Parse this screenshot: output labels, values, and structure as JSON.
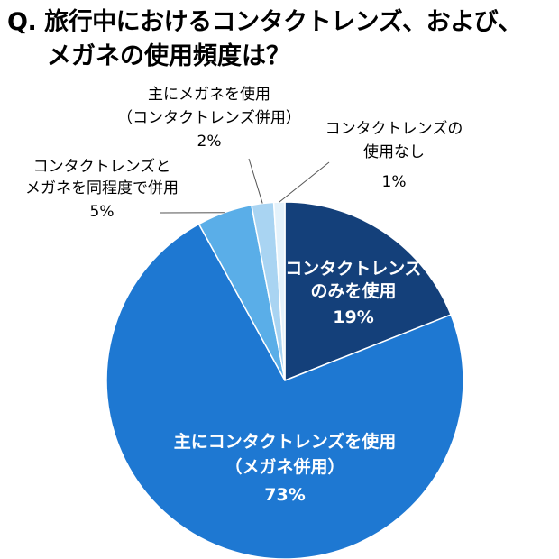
{
  "title": {
    "line1": "Q. 旅行中におけるコンタクトレンズ、および、",
    "line2": "メガネの使用頻度は？"
  },
  "colors": {
    "slice_contact_only": "#14407a",
    "slice_mainly_contact": "#1e78d2",
    "slice_both": "#5aaee8",
    "slice_mainly_glasses": "#a9d4f2",
    "slice_no_contact": "#e4f2fb",
    "outline": "#ffffff",
    "leader": "#555555"
  },
  "chart_data": {
    "type": "pie",
    "title": "Q. 旅行中におけるコンタクトレンズ、および、メガネの使用頻度は？",
    "start": "12 o'clock",
    "direction": "clockwise",
    "slices": [
      {
        "id": "contact_only",
        "value": 19,
        "label_lines": [
          "コンタクトレンズ",
          "のみを使用"
        ],
        "value_label": "19%"
      },
      {
        "id": "mainly_contact",
        "value": 73,
        "label_lines": [
          "主にコンタクトレンズを使用",
          "（メガネ併用）"
        ],
        "value_label": "73%"
      },
      {
        "id": "both",
        "value": 5,
        "label_lines": [
          "コンタクトレンズと",
          "メガネを同程度で併用"
        ],
        "value_label": "5%"
      },
      {
        "id": "mainly_glasses",
        "value": 2,
        "label_lines": [
          "主にメガネを使用",
          "（コンタクトレンズ併用）"
        ],
        "value_label": "2%"
      },
      {
        "id": "no_contact",
        "value": 1,
        "label_lines": [
          "コンタクトレンズの",
          "使用なし"
        ],
        "value_label": "1%"
      }
    ]
  }
}
